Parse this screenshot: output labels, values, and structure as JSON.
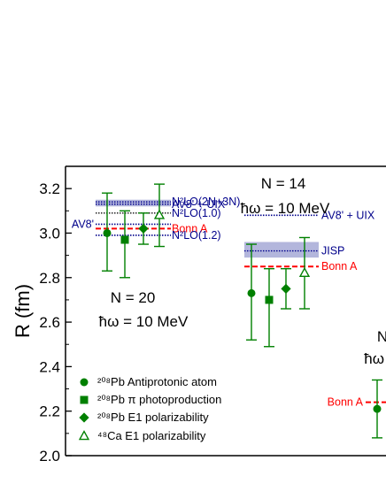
{
  "chart_data": {
    "type": "scatter",
    "ylabel": "R (fm)",
    "ylim": [
      2.0,
      3.3
    ],
    "yticks": [
      "2.0",
      "2.2",
      "2.4",
      "2.6",
      "2.8",
      "3.0",
      "3.2"
    ],
    "grid": false,
    "legend_position": "bottom-left",
    "colors": {
      "data": "#008000",
      "bonn": "#ff0000",
      "theory": "#00008b",
      "band": "#b3b6dc"
    },
    "series": [
      {
        "name": "²⁰⁸Pb Antiprotonic atom",
        "marker": "circle"
      },
      {
        "name": "²⁰⁸Pb π photoproduction",
        "marker": "square"
      },
      {
        "name": "²⁰⁸Pb E1 polarizability",
        "marker": "diamond"
      },
      {
        "name": "⁴⁸Ca E1 polarizability",
        "marker": "triangle-open"
      }
    ],
    "groups": [
      {
        "label_line1": "N = 20",
        "label_line2": "ħω = 10 MeV",
        "points": [
          {
            "series": 0,
            "y": 3.0,
            "err_low": 2.83,
            "err_high": 3.18
          },
          {
            "series": 1,
            "y": 2.97,
            "err_low": 2.8,
            "err_high": 3.1
          },
          {
            "series": 2,
            "y": 3.02,
            "err_low": 2.95,
            "err_high": 3.09
          },
          {
            "series": 3,
            "y": 3.08,
            "err_low": 2.94,
            "err_high": 3.22
          }
        ],
        "references": [
          {
            "label": "N²LO(2N+3N)",
            "y": 3.14,
            "style": "band",
            "band_low": 3.12,
            "band_high": 3.15,
            "side": "right"
          },
          {
            "label": "AV8' + UIX",
            "y": 3.13,
            "style": "dotted",
            "side": "right"
          },
          {
            "label": "N²LO(1.0)",
            "y": 3.09,
            "style": "dotted-black",
            "side": "right"
          },
          {
            "label": "AV8'",
            "y": 3.04,
            "style": "dotted",
            "side": "left"
          },
          {
            "label": "Bonn A",
            "y": 3.02,
            "style": "dashed-red",
            "side": "right"
          },
          {
            "label": "N²LO(1.2)",
            "y": 2.99,
            "style": "dotted",
            "side": "right"
          }
        ]
      },
      {
        "label_line1": "N = 14",
        "label_line2": "ħω = 10 MeV",
        "points": [
          {
            "series": 0,
            "y": 2.73,
            "err_low": 2.52,
            "err_high": 2.95
          },
          {
            "series": 1,
            "y": 2.7,
            "err_low": 2.49,
            "err_high": 2.84
          },
          {
            "series": 2,
            "y": 2.75,
            "err_low": 2.66,
            "err_high": 2.84
          },
          {
            "series": 3,
            "y": 2.82,
            "err_low": 2.66,
            "err_high": 2.98
          }
        ],
        "references": [
          {
            "label": "AV8' + UIX",
            "y": 3.08,
            "style": "dotted",
            "side": "right"
          },
          {
            "label": "JISP",
            "y": 2.92,
            "style": "band",
            "band_low": 2.89,
            "band_high": 2.96,
            "side": "right"
          },
          {
            "label": "Bonn A",
            "y": 2.85,
            "style": "dashed-red",
            "side": "right"
          }
        ]
      },
      {
        "label_line1": "N",
        "label_line2": "ħω =",
        "points": [
          {
            "series": 0,
            "y": 2.21,
            "err_low": 2.08,
            "err_high": 2.34
          }
        ],
        "references": [
          {
            "label": "Bonn A",
            "y": 2.24,
            "style": "dashed-red",
            "side": "left"
          }
        ]
      }
    ]
  }
}
